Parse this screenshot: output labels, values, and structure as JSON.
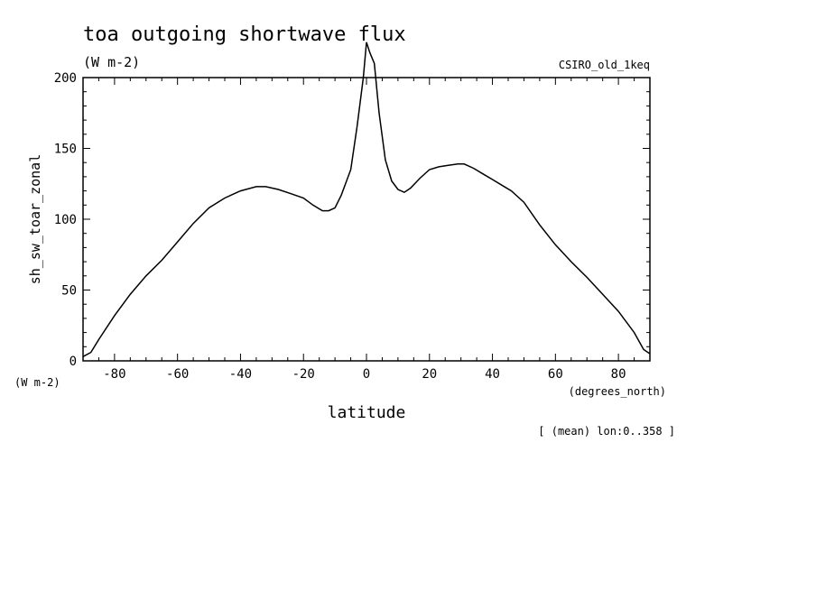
{
  "chart_data": {
    "type": "line",
    "title": "toa outgoing shortwave flux",
    "subtitle": "(W m-2)",
    "dataset": "CSIRO_old_1keq",
    "xlabel": "latitude",
    "xunits": "(degrees_north)",
    "ylabel": "sh_sw_toar_zonal",
    "yunits": "(W m-2)",
    "footnote": "[ (mean) lon:0..358 ]",
    "xlim": [
      -90,
      90
    ],
    "ylim": [
      0,
      200
    ],
    "x_ticks": [
      -80,
      -60,
      -40,
      -20,
      0,
      20,
      40,
      60,
      80
    ],
    "y_ticks": [
      0,
      50,
      100,
      150,
      200
    ],
    "grid": false,
    "series": [
      {
        "x": [
          -90,
          -87.5,
          -85,
          -80,
          -75,
          -70,
          -65,
          -60,
          -55,
          -50,
          -45,
          -40,
          -35,
          -32,
          -28,
          -24,
          -20,
          -17,
          -14,
          -12,
          -10,
          -8,
          -5,
          -3,
          -1,
          0,
          1,
          2.5,
          4,
          6,
          8,
          10,
          12,
          14,
          17,
          20,
          23,
          26,
          29,
          31,
          34,
          37,
          40,
          43,
          46,
          50,
          55,
          60,
          65,
          70,
          75,
          80,
          85,
          88,
          90
        ],
        "y": [
          3,
          6,
          15,
          32,
          47,
          60,
          71,
          84,
          97,
          108,
          115,
          120,
          123,
          123,
          121,
          118,
          115,
          110,
          106,
          106,
          108,
          117,
          135,
          165,
          200,
          225,
          218,
          210,
          175,
          142,
          127,
          121,
          119,
          122,
          129,
          135,
          137,
          138,
          139,
          139,
          136,
          132,
          128,
          124,
          120,
          112,
          96,
          82,
          70,
          59,
          47,
          35,
          20,
          8,
          5
        ]
      }
    ]
  }
}
